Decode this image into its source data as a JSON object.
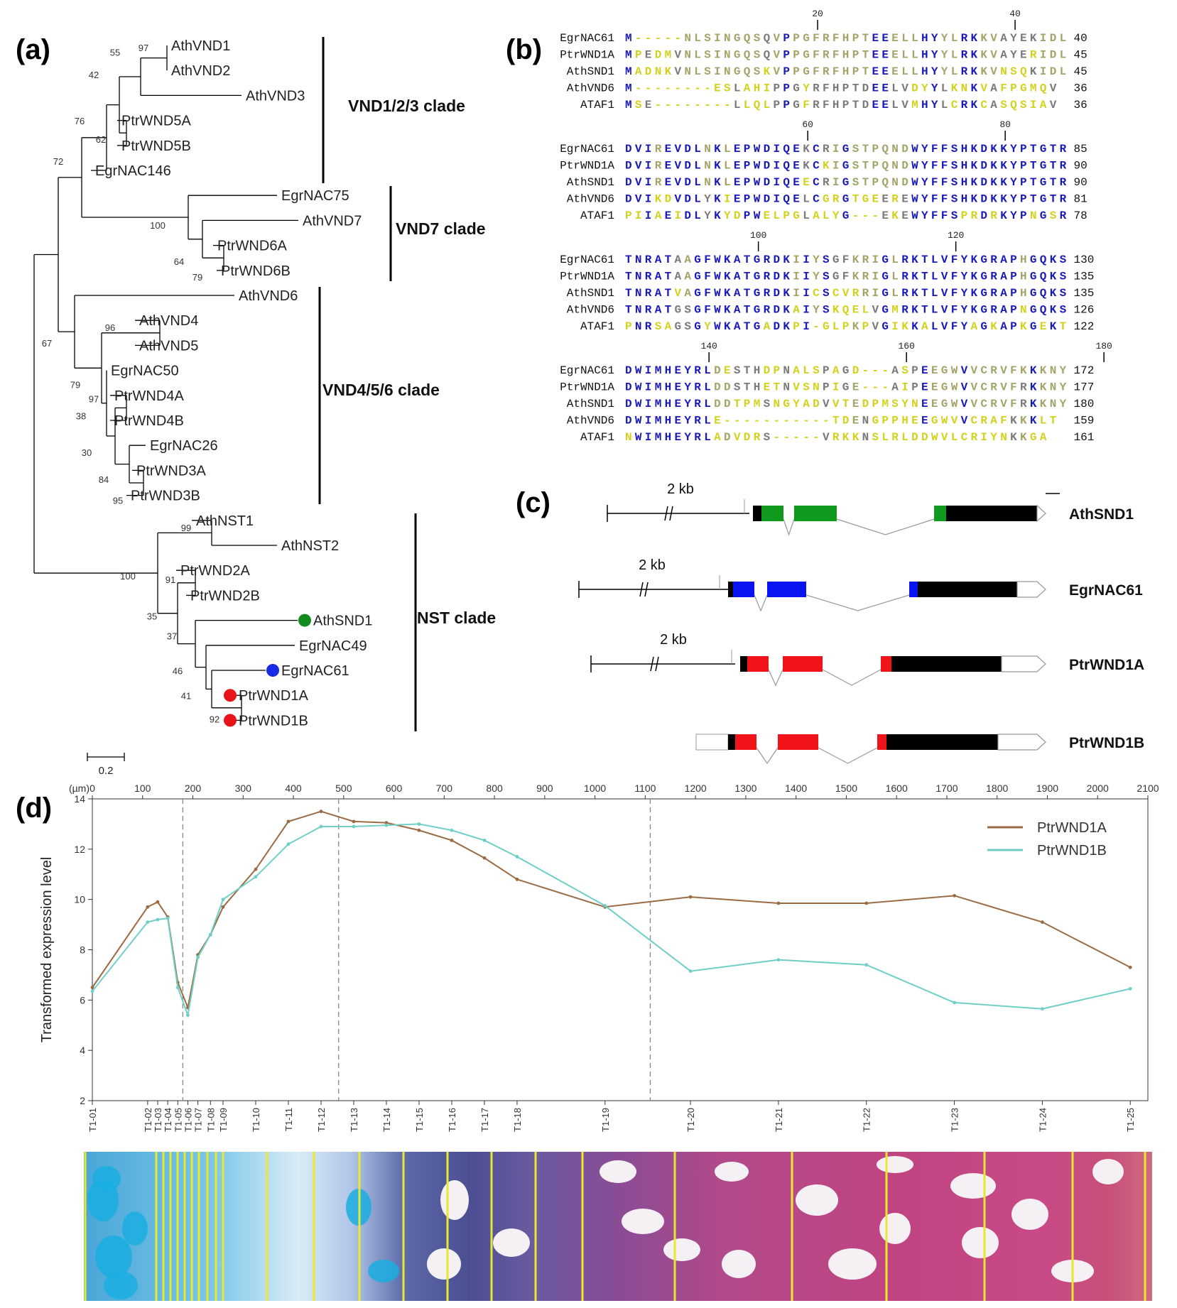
{
  "panels": {
    "a": "(a)",
    "b": "(b)",
    "c": "(c)",
    "d": "(d)"
  },
  "tree": {
    "scale_label": "0.2",
    "leaves": [
      "AthVND1",
      "AthVND2",
      "AthVND3",
      "PtrWND5A",
      "PtrWND5B",
      "EgrNAC146",
      "EgrNAC75",
      "AthVND7",
      "PtrWND6A",
      "PtrWND6B",
      "AthVND6",
      "AthVND4",
      "AthVND5",
      "EgrNAC50",
      "PtrWND4A",
      "PtrWND4B",
      "EgrNAC26",
      "PtrWND3A",
      "PtrWND3B",
      "AthNST1",
      "AthNST2",
      "PtrWND2A",
      "PtrWND2B",
      "AthSND1",
      "EgrNAC49",
      "EgrNAC61",
      "PtrWND1A",
      "PtrWND1B"
    ],
    "bootstraps": [
      "97",
      "55",
      "42",
      "76",
      "62",
      "72",
      "100",
      "64",
      "79",
      "96",
      "67",
      "79",
      "97",
      "38",
      "30",
      "84",
      "95",
      "99",
      "91",
      "100",
      "35",
      "37",
      "46",
      "41",
      "92"
    ],
    "clades": [
      "VND1/2/3 clade",
      "VND7 clade",
      "VND4/5/6 clade",
      "NST clade"
    ],
    "marker_colors": {
      "AthSND1": "#138a1e",
      "EgrNAC61": "#1a2be8",
      "PtrWND1A": "#e8141a",
      "PtrWND1B": "#e8141a"
    }
  },
  "alignment": {
    "blocks": [
      {
        "ruler": [
          "20",
          "40"
        ],
        "rows": [
          {
            "name": "EgrNAC61",
            "seq": "M-----NLSINGQSQVPPGFRFHPTEEELLHYYLRKKVAYEKIDL",
            "end": "40"
          },
          {
            "name": "PtrWND1A",
            "seq": "MPEDMVNLSINGQSQVPPGFRFHPTEEELLHYYLRKKVAYERIDL",
            "end": "45"
          },
          {
            "name": "AthSND1",
            "seq": "MADNKVNLSINGQSKVPPGFRFHPTEEELLHYYLRKKVNSQKIDL",
            "end": "45"
          },
          {
            "name": "AthVND6",
            "seq": "M--------ESLAHIPPGYRFHPTDEELVDYYLKNKVAFPGMQV",
            "end": "36"
          },
          {
            "name": "ATAF1",
            "seq": "MSE--------LLQLPPGFRFHPTDEELVMHYLCRKCASQSIAV",
            "end": "36"
          }
        ]
      },
      {
        "ruler": [
          "60",
          "80"
        ],
        "rows": [
          {
            "name": "EgrNAC61",
            "seq": "DVIREVDLNKLEPWDIQEKCRIGSTPQNDWYFFSHKDKKYPTGTR",
            "end": "85"
          },
          {
            "name": "PtrWND1A",
            "seq": "DVIREVDLNKLEPWDIQEKCKIGSTPQNDWYFFSHKDKKYPTGTR",
            "end": "90"
          },
          {
            "name": "AthSND1",
            "seq": "DVIREVDLNKLEPWDIQEECRIGSTPQNDWYFFSHKDKKYPTGTR",
            "end": "90"
          },
          {
            "name": "AthVND6",
            "seq": "DVIKDVDLYKIEPWDIQELCGRGTGEEREWYFFSHKDKKYPTGTR",
            "end": "81"
          },
          {
            "name": "ATAF1",
            "seq": "PIIAEIDLYKYDPWELPGLALYG---EKEWYFFSPRDRKYPNGSR",
            "end": "78"
          }
        ]
      },
      {
        "ruler": [
          "100",
          "120"
        ],
        "rows": [
          {
            "name": "EgrNAC61",
            "seq": "TNRATAAGFWKATGRDKIIYSGFKRIGLRKTLVFYKGRAPHGQKS",
            "end": "130"
          },
          {
            "name": "PtrWND1A",
            "seq": "TNRATAAGFWKATGRDKIIYSGFKRIGLRKTLVFYKGRAPHGQKS",
            "end": "135"
          },
          {
            "name": "AthSND1",
            "seq": "TNRATVAGFWKATGRDKIICSCVRRIGLRKTLVFYKGRAPHGQKS",
            "end": "135"
          },
          {
            "name": "AthVND6",
            "seq": "TNRATGSGFWKATGRDKAIYSKQELVGMRKTLVFYKGRAPNGQKS",
            "end": "126"
          },
          {
            "name": "ATAF1",
            "seq": "PNRSAGSGYWKATGADKPI-GLPKPVGIKKALVFYAGKAPKGEKT",
            "end": "122"
          }
        ]
      },
      {
        "ruler": [
          "140",
          "160",
          "180"
        ],
        "rows": [
          {
            "name": "EgrNAC61",
            "seq": "DWIMHEYRLDESTHDPNALSPAGD---ASPEEGWVVCRVFKKKNY",
            "end": "172"
          },
          {
            "name": "PtrWND1A",
            "seq": "DWIMHEYRLDDSTHETNVSNPIGE---AIPEEGWVVCRVFRKKNY",
            "end": "177"
          },
          {
            "name": "AthSND1",
            "seq": "DWIMHEYRLDDTPMSNGYADVVTEDPMSYNEEGWVVCRVFRKKNY",
            "end": "180"
          },
          {
            "name": "AthVND6",
            "seq": "DWIMHEYRLE-----------TDENGPPHEEGWVVCRAFKKKLT",
            "end": "159"
          },
          {
            "name": "ATAF1",
            "seq": "NWIMHEYRLADVDRS-----VRKKNSLRLDDWVLCRIYNKKGA",
            "end": "161"
          }
        ]
      }
    ]
  },
  "genes": {
    "scale_label": "2 kb",
    "names": [
      "AthSND1",
      "EgrNAC61",
      "PtrWND1A",
      "PtrWND1B"
    ],
    "exon_colors": {
      "AthSND1": "#0f9a1d",
      "EgrNAC61": "#0a14f0",
      "PtrWND1A": "#f0141a",
      "PtrWND1B": "#f0141a"
    }
  },
  "chart_data": {
    "type": "line",
    "ylabel": "Transformed expression level",
    "xlabel_top_unit": "(µm)",
    "ylim": [
      2,
      14
    ],
    "yticks": [
      "2",
      "4",
      "6",
      "8",
      "10",
      "12",
      "14"
    ],
    "xlim": [
      0,
      2100
    ],
    "xticks_top": [
      "0",
      "100",
      "200",
      "300",
      "400",
      "500",
      "600",
      "700",
      "800",
      "900",
      "1000",
      "1100",
      "1200",
      "1300",
      "1400",
      "1500",
      "1600",
      "1700",
      "1800",
      "1900",
      "2000",
      "2100"
    ],
    "samples": [
      "T1-01",
      "T1-02",
      "T1-03",
      "T1-04",
      "T1-05",
      "T1-06",
      "T1-07",
      "T1-08",
      "T1-09",
      "T1-10",
      "T1-11",
      "T1-12",
      "T1-13",
      "T1-14",
      "T1-15",
      "T1-16",
      "T1-17",
      "T1-18",
      "T1-19",
      "T1-20",
      "T1-21",
      "T1-22",
      "T1-23",
      "T1-24",
      "T1-25"
    ],
    "sample_positions_um": [
      0,
      110,
      130,
      150,
      170,
      190,
      210,
      235,
      260,
      325,
      390,
      455,
      520,
      585,
      650,
      715,
      780,
      845,
      1020,
      1190,
      1365,
      1540,
      1715,
      1890,
      2065
    ],
    "vlines_um": [
      180,
      490,
      1110
    ],
    "series": [
      {
        "name": "PtrWND1A",
        "color": "#9b6b43",
        "values": [
          6.5,
          9.7,
          9.9,
          9.3,
          6.7,
          5.7,
          7.8,
          8.6,
          9.7,
          11.2,
          13.1,
          13.5,
          13.1,
          13.05,
          12.75,
          12.35,
          11.65,
          10.8,
          9.7,
          10.1,
          9.85,
          9.85,
          10.15,
          9.1,
          7.3
        ]
      },
      {
        "name": "PtrWND1B",
        "color": "#6fcfc7",
        "values": [
          6.35,
          9.1,
          9.2,
          9.25,
          6.5,
          5.4,
          7.7,
          8.6,
          10.0,
          10.9,
          12.2,
          12.9,
          12.9,
          12.95,
          13.0,
          12.75,
          12.35,
          11.7,
          9.75,
          7.15,
          7.6,
          7.4,
          5.9,
          5.65,
          6.45
        ]
      }
    ]
  }
}
